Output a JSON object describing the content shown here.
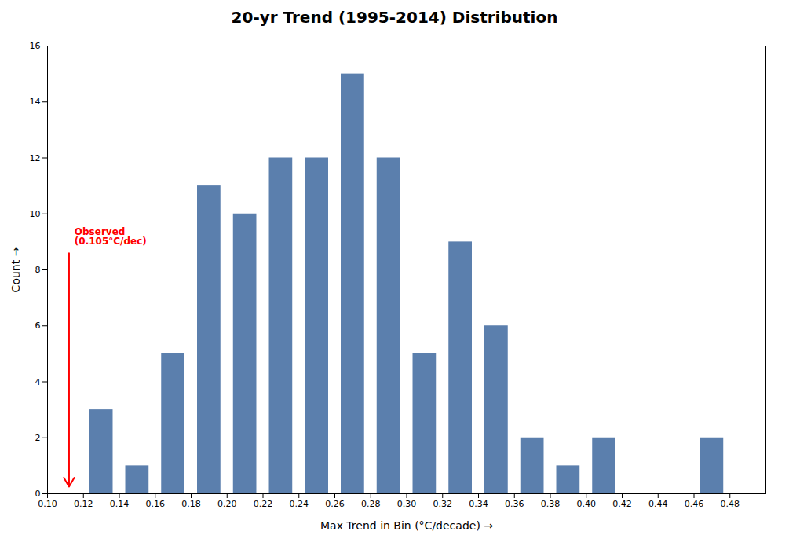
{
  "chart_data": {
    "type": "histogram",
    "title": "20-yr Trend (1995-2014) Distribution",
    "xlabel": "Max Trend in Bin (°C/decade)",
    "ylabel": "Count",
    "color": "#5b7fad",
    "bins": [
      0.1,
      0.12,
      0.14,
      0.16,
      0.18,
      0.2,
      0.22,
      0.24,
      0.26,
      0.28,
      0.3,
      0.32,
      0.34,
      0.36,
      0.38,
      0.4,
      0.42,
      0.44,
      0.46,
      0.48,
      0.5
    ],
    "counts": [
      0,
      3,
      1,
      5,
      11,
      10,
      12,
      12,
      15,
      12,
      5,
      9,
      6,
      2,
      1,
      2,
      0,
      0,
      2,
      0
    ],
    "xlim": [
      0.1,
      0.5
    ],
    "xticks": [
      {
        "value": 0.1,
        "label": "0.10"
      },
      0.12,
      0.14,
      0.16,
      0.18,
      {
        "value": 0.2,
        "label": "0.20"
      },
      0.22,
      0.24,
      0.26,
      0.28,
      {
        "value": 0.3,
        "label": "0.30"
      },
      0.32,
      0.34,
      0.36,
      0.38,
      {
        "value": 0.4,
        "label": "0.40"
      },
      0.42,
      0.44,
      0.46,
      0.48
    ],
    "ylim": [
      0,
      16
    ],
    "yticks": [
      0,
      2,
      4,
      6,
      8,
      10,
      12,
      14,
      16
    ],
    "grid": false,
    "annotations": [
      {
        "text": "Observed\n(0.105°C/dec)",
        "x": 0.115,
        "y": 8.9,
        "color": "red",
        "arrow": {
          "x": 0.112,
          "y1": 8.6,
          "y2": 0.25,
          "color": "red"
        }
      }
    ]
  }
}
